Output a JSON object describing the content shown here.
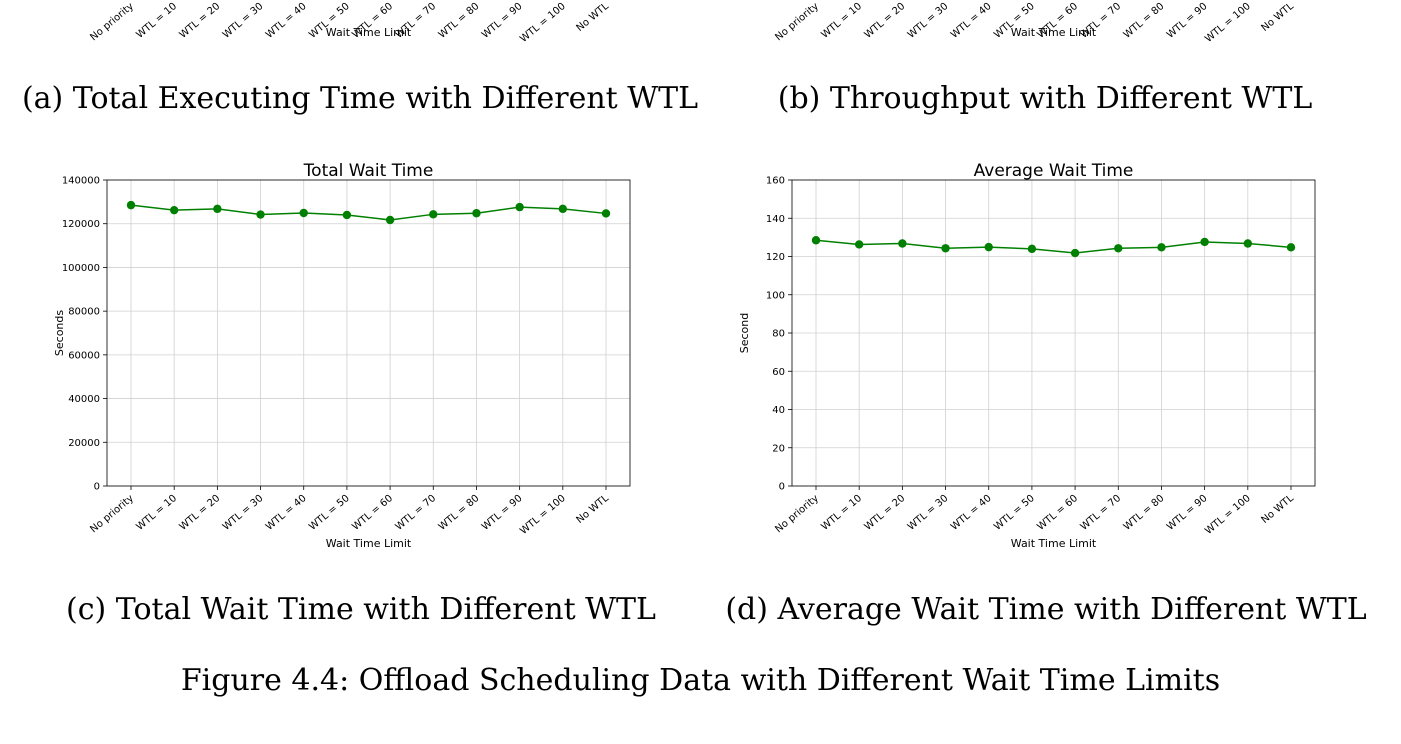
{
  "captions": {
    "a": "(a) Total Executing Time with Different WTL",
    "b": "(b) Throughput with Different WTL",
    "c": "(c) Total Wait Time with Different WTL",
    "d": "(d) Average Wait Time with Different WTL",
    "figure": "Figure 4.4: Offload Scheduling Data with Different Wait Time Limits"
  },
  "top_partial": {
    "left": {
      "xlabel": "Wait Time Limit",
      "tick_labels": [
        "No priority",
        "WTL = 10",
        "WTL = 20",
        "WTL = 30",
        "WTL = 40",
        "WTL = 50",
        "WTL = 60",
        "WTL = 70",
        "WTL = 80",
        "WTL = 90",
        "WTL = 100",
        "No WTL"
      ]
    },
    "right": {
      "xlabel": "Wait Time Limit",
      "tick_labels": [
        "No priority",
        "WTL = 10",
        "WTL = 20",
        "WTL = 30",
        "WTL = 40",
        "WTL = 50",
        "WTL = 60",
        "WTL = 70",
        "WTL = 80",
        "WTL = 90",
        "WTL = 100",
        "No WTL"
      ]
    }
  },
  "colors": {
    "series": "#008000",
    "grid": "#d0d0d0"
  },
  "chart_data": [
    {
      "type": "line",
      "title": "Total Wait Time",
      "xlabel": "Wait Time Limit",
      "ylabel": "Seconds",
      "categories": [
        "No priority",
        "WTL = 10",
        "WTL = 20",
        "WTL = 30",
        "WTL = 40",
        "WTL = 50",
        "WTL = 60",
        "WTL = 70",
        "WTL = 80",
        "WTL = 90",
        "WTL = 100",
        "No WTL"
      ],
      "values": [
        128500,
        126200,
        126800,
        124200,
        124900,
        124000,
        121700,
        124300,
        124800,
        127600,
        126800,
        124700
      ],
      "ylim": [
        0,
        140000
      ],
      "yticks": [
        0,
        20000,
        40000,
        60000,
        80000,
        100000,
        120000,
        140000
      ],
      "grid": true
    },
    {
      "type": "line",
      "title": "Average Wait Time",
      "xlabel": "Wait Time Limit",
      "ylabel": "Second",
      "categories": [
        "No priority",
        "WTL = 10",
        "WTL = 20",
        "WTL = 30",
        "WTL = 40",
        "WTL = 50",
        "WTL = 60",
        "WTL = 70",
        "WTL = 80",
        "WTL = 90",
        "WTL = 100",
        "No WTL"
      ],
      "values": [
        128.5,
        126.3,
        126.8,
        124.3,
        124.9,
        124.0,
        121.8,
        124.3,
        124.8,
        127.6,
        126.8,
        124.8
      ],
      "ylim": [
        0,
        160
      ],
      "yticks": [
        0,
        20,
        40,
        60,
        80,
        100,
        120,
        140,
        160
      ],
      "grid": true
    }
  ]
}
